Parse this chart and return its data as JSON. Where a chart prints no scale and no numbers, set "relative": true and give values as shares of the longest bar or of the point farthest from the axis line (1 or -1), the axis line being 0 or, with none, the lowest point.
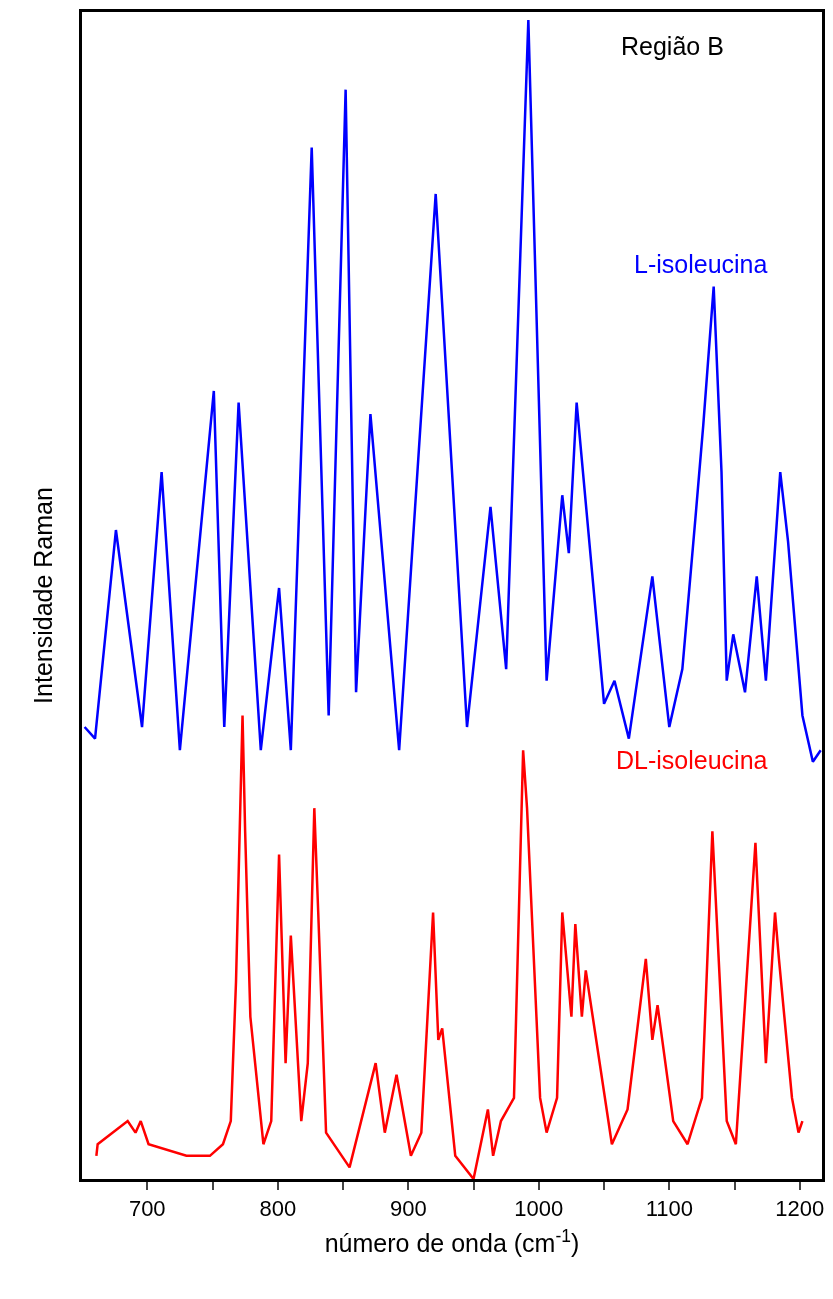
{
  "chart_data": {
    "type": "line",
    "relative": true,
    "xlabel": "número de onda (cm$^{-1}$)",
    "ylabel": "Intensidade Raman",
    "annotations": [
      "Região B"
    ],
    "xlim": [
      650,
      1217
    ],
    "xticks": [
      700,
      {
        "value": 750,
        "label": null
      },
      800,
      {
        "value": 850,
        "label": null
      },
      900,
      {
        "value": 950,
        "label": null
      },
      1000,
      {
        "value": 1050,
        "label": null
      },
      1100,
      {
        "value": 1150,
        "label": null
      },
      1200
    ],
    "legend": false,
    "marker": "none",
    "line_style": "solid",
    "series": [
      {
        "name": "L-isoleucina",
        "color": "#0000ff",
        "x": [
          652,
          660,
          676,
          696,
          711,
          725,
          751,
          759,
          770,
          787,
          801,
          810,
          826,
          839,
          852,
          860,
          871,
          893,
          921,
          945,
          963,
          975,
          992,
          1006,
          1018,
          1023,
          1029,
          1050,
          1058,
          1069,
          1087,
          1100,
          1110,
          1120,
          1126,
          1134,
          1140,
          1144,
          1149,
          1158,
          1167,
          1174,
          1185,
          1191,
          1202,
          1210,
          1216
        ],
        "values": [
          0.39,
          0.38,
          0.56,
          0.39,
          0.61,
          0.37,
          0.68,
          0.39,
          0.67,
          0.37,
          0.51,
          0.37,
          0.89,
          0.4,
          0.94,
          0.42,
          0.66,
          0.37,
          0.85,
          0.39,
          0.58,
          0.44,
          1.0,
          0.43,
          0.59,
          0.54,
          0.67,
          0.41,
          0.43,
          0.38,
          0.52,
          0.39,
          0.44,
          0.57,
          0.65,
          0.77,
          0.61,
          0.43,
          0.47,
          0.42,
          0.52,
          0.43,
          0.61,
          0.55,
          0.4,
          0.36,
          0.37
        ]
      },
      {
        "name": "DL-isoleucina",
        "color": "#ff0000",
        "x": [
          661,
          662,
          685,
          691,
          695,
          701,
          730,
          748,
          758,
          764,
          768,
          773,
          775,
          779,
          789,
          795,
          801,
          806,
          810,
          818,
          823,
          828,
          831,
          837,
          855,
          875,
          882,
          891,
          902,
          910,
          919,
          923,
          926,
          936,
          950,
          961,
          965,
          971,
          981,
          988,
          991,
          1001,
          1006,
          1014,
          1018,
          1025,
          1028,
          1033,
          1036,
          1056,
          1068,
          1082,
          1087,
          1091,
          1103,
          1114,
          1125,
          1133,
          1144,
          1151,
          1166,
          1174,
          1181,
          1184,
          1194,
          1199,
          1202
        ],
        "values": [
          0.02,
          0.03,
          0.05,
          0.04,
          0.05,
          0.03,
          0.02,
          0.02,
          0.03,
          0.05,
          0.17,
          0.4,
          0.3,
          0.14,
          0.03,
          0.05,
          0.28,
          0.1,
          0.21,
          0.05,
          0.1,
          0.32,
          0.23,
          0.04,
          0.01,
          0.1,
          0.04,
          0.09,
          0.02,
          0.04,
          0.23,
          0.12,
          0.13,
          0.02,
          0.0,
          0.06,
          0.02,
          0.05,
          0.07,
          0.37,
          0.32,
          0.07,
          0.04,
          0.07,
          0.23,
          0.14,
          0.22,
          0.14,
          0.18,
          0.03,
          0.06,
          0.19,
          0.12,
          0.15,
          0.05,
          0.03,
          0.07,
          0.3,
          0.05,
          0.03,
          0.29,
          0.1,
          0.23,
          0.19,
          0.07,
          0.04,
          0.05
        ]
      }
    ]
  }
}
